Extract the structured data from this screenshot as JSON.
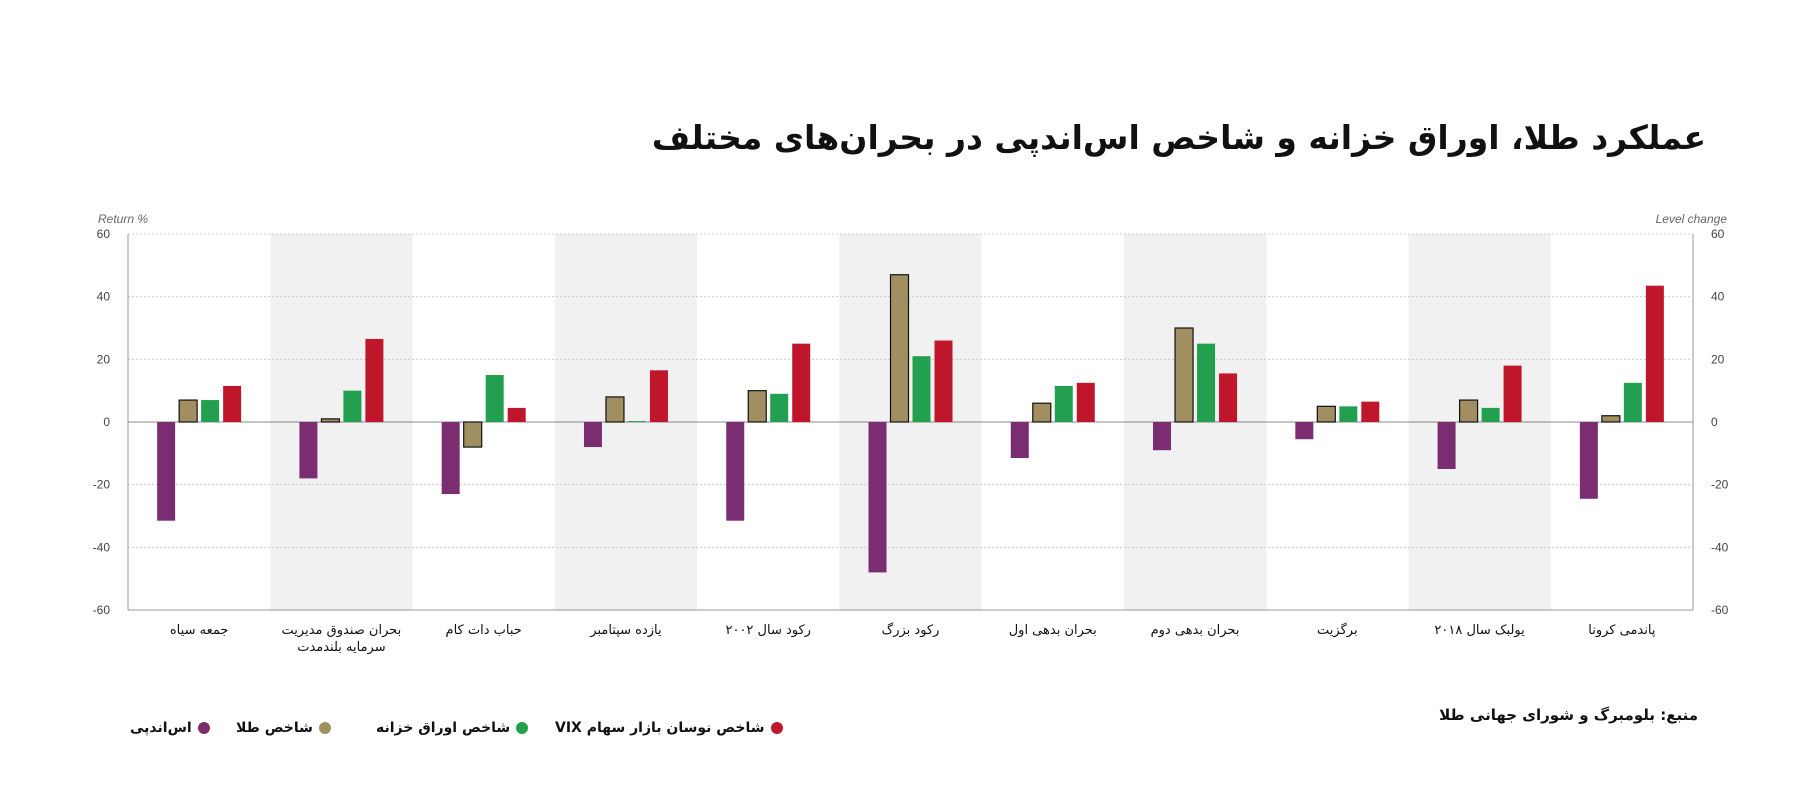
{
  "title": "عملکرد طلا، اوراق خزانه و شاخص اس‌اندپی در بحران‌های مختلف",
  "left_axis_caption": "Return %",
  "right_axis_caption": "Level change",
  "source": "منبع: بلومبرگ و شورای جهانی طلا",
  "colors": {
    "sp500": "#7b2d72",
    "gold": "#a28f61",
    "treasury": "#23a04f",
    "vix": "#c0162c",
    "shaded_band": "#f1f1f1",
    "gridline": "#cccccc",
    "axis": "#999999"
  },
  "chart_data": {
    "type": "bar",
    "ylim": [
      -60,
      60
    ],
    "yticks": [
      "60",
      "40",
      "20",
      "0",
      "-20",
      "-40",
      "-60"
    ],
    "grid": true,
    "legend_position": "bottom-left",
    "categories": [
      "جمعه سیاه",
      "بحران صندوق مدیریت سرمایه بلندمدت",
      "حباب دات کام",
      "یازده سپتامبر",
      "رکود سال ۲۰۰۲",
      "رکود بزرگ",
      "بحران بدهی اول",
      "بحران بدهی دوم",
      "برگزیت",
      "یولبک سال ۲۰۱۸",
      "پاندمی کرونا"
    ],
    "series": [
      {
        "name": "اس‌اندپی",
        "values": [
          -31.5,
          -18,
          -23,
          -8,
          -31.5,
          -48,
          -11.5,
          -9,
          -5.5,
          -15,
          -24.5
        ]
      },
      {
        "name": "شاخص طلا",
        "values": [
          7,
          1,
          -8,
          8,
          10,
          47,
          6,
          30,
          5,
          7,
          2
        ]
      },
      {
        "name": "شاخص اوراق خزانه",
        "values": [
          7,
          10,
          15,
          0.3,
          9,
          21,
          11.5,
          25,
          5,
          4.5,
          12.5
        ]
      },
      {
        "name": "شاخص نوسان بازار سهام VIX",
        "values": [
          11.5,
          26.5,
          4.5,
          16.5,
          25,
          26,
          12.5,
          15.5,
          6.5,
          18,
          43.5
        ]
      }
    ]
  }
}
